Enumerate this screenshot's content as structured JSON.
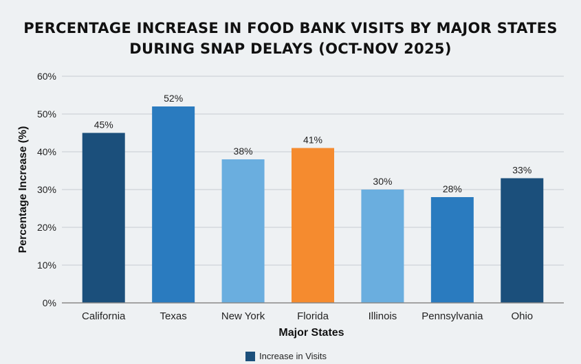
{
  "chart_data": {
    "type": "bar",
    "title": "PERCENTAGE INCREASE IN FOOD BANK VISITS BY MAJOR STATES DURING SNAP DELAYS (OCT-NOV 2025)",
    "xlabel": "Major States",
    "ylabel": "Percentage Increase (%)",
    "ylim": [
      0,
      60
    ],
    "yticks": [
      0,
      10,
      20,
      30,
      40,
      50,
      60
    ],
    "ytick_labels": [
      "0%",
      "10%",
      "20%",
      "30%",
      "40%",
      "50%",
      "60%"
    ],
    "grid": true,
    "categories": [
      "California",
      "Texas",
      "New York",
      "Florida",
      "Illinois",
      "Pennsylvania",
      "Ohio"
    ],
    "values": [
      45,
      52,
      38,
      41,
      30,
      28,
      33
    ],
    "data_labels": [
      "45%",
      "52%",
      "38%",
      "41%",
      "30%",
      "28%",
      "33%"
    ],
    "bar_colors": [
      "#1b4f7b",
      "#2a7bbf",
      "#6aaedf",
      "#f58b2f",
      "#6aaedf",
      "#2a7bbf",
      "#1b4f7b"
    ],
    "legend": {
      "position": "bottom",
      "entries": [
        {
          "name": "Increase in Visits",
          "color": "#1b4f7b"
        }
      ]
    }
  }
}
